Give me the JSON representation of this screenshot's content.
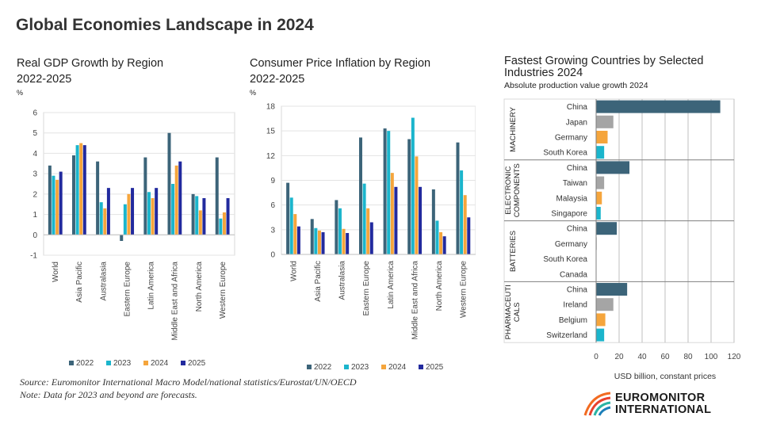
{
  "title": "Global Economies Landscape in 2024",
  "colors": {
    "2022": "#3c6479",
    "2023": "#1bb5cc",
    "2024": "#f5a53c",
    "2025": "#222a9e"
  },
  "source": {
    "line1": "Source: Euromonitor International Macro Model/national statistics/Eurostat/UN/OECD",
    "line2": "Note: Data for 2023 and beyond are forecasts."
  },
  "logo": {
    "line1": "EUROMONITOR",
    "line2": "INTERNATIONAL"
  },
  "chart_data": [
    {
      "type": "bar",
      "title": "Real GDP Growth by Region",
      "subtitle": "2022-2025",
      "ylabel": "%",
      "ylim": [
        -1,
        6
      ],
      "yticks": [
        -1,
        0,
        1,
        2,
        3,
        4,
        5,
        6
      ],
      "categories": [
        "World",
        "Asia Pacific",
        "Australasia",
        "Eastern Europe",
        "Latin America",
        "Middle East and Africa",
        "North America",
        "Western Europe"
      ],
      "series": [
        {
          "name": "2022",
          "values": [
            3.4,
            3.9,
            3.6,
            -0.3,
            3.8,
            5.0,
            2.0,
            3.8
          ]
        },
        {
          "name": "2023",
          "values": [
            2.9,
            4.4,
            1.6,
            1.5,
            2.1,
            2.5,
            1.9,
            0.8
          ]
        },
        {
          "name": "2024",
          "values": [
            2.7,
            4.5,
            1.3,
            2.0,
            1.8,
            3.4,
            1.2,
            1.1
          ]
        },
        {
          "name": "2025",
          "values": [
            3.1,
            4.4,
            2.3,
            2.3,
            2.3,
            3.6,
            1.8,
            1.8
          ]
        }
      ],
      "legend": "bottom"
    },
    {
      "type": "bar",
      "title": "Consumer Price Inflation by Region",
      "subtitle": "2022-2025",
      "ylabel": "%",
      "ylim": [
        0,
        18
      ],
      "yticks": [
        0,
        3,
        6,
        9,
        12,
        15,
        18
      ],
      "categories": [
        "World",
        "Asia Pacific",
        "Australasia",
        "Eastern Europe",
        "Latin America",
        "Middle East and Africa",
        "North America",
        "Western Europe"
      ],
      "series": [
        {
          "name": "2022",
          "values": [
            8.7,
            4.3,
            6.6,
            14.2,
            15.3,
            14.0,
            7.9,
            13.6
          ]
        },
        {
          "name": "2023",
          "values": [
            6.9,
            3.2,
            5.6,
            8.6,
            15.0,
            16.6,
            4.1,
            10.2
          ]
        },
        {
          "name": "2024",
          "values": [
            4.9,
            2.9,
            3.1,
            5.6,
            9.9,
            11.9,
            2.7,
            7.2
          ]
        },
        {
          "name": "2025",
          "values": [
            3.4,
            2.7,
            2.6,
            3.9,
            8.2,
            8.2,
            2.2,
            4.5
          ]
        }
      ],
      "legend": "bottom"
    },
    {
      "type": "bar",
      "orientation": "horizontal",
      "title": "Fastest Growing Countries by Selected Industries 2024",
      "subtitle": "Absolute production value growth 2024",
      "xlabel": "USD billion, constant prices",
      "xlim": [
        0,
        120
      ],
      "xticks": [
        0,
        20,
        40,
        60,
        80,
        100,
        120
      ],
      "groups": [
        {
          "name_lines": [
            "MACHINERY"
          ],
          "items": [
            {
              "label": "China",
              "value": 108,
              "rank": 0
            },
            {
              "label": "Japan",
              "value": 15,
              "rank": 1
            },
            {
              "label": "Germany",
              "value": 10,
              "rank": 2
            },
            {
              "label": "South Korea",
              "value": 7,
              "rank": 3
            }
          ]
        },
        {
          "name_lines": [
            "ELECTRONIC",
            "COMPONENTS"
          ],
          "items": [
            {
              "label": "China",
              "value": 29,
              "rank": 0
            },
            {
              "label": "Taiwan",
              "value": 7,
              "rank": 1
            },
            {
              "label": "Malaysia",
              "value": 5,
              "rank": 2
            },
            {
              "label": "Singapore",
              "value": 4,
              "rank": 3
            }
          ]
        },
        {
          "name_lines": [
            "BATTERIES"
          ],
          "items": [
            {
              "label": "China",
              "value": 18,
              "rank": 0
            },
            {
              "label": "Germany",
              "value": 0.5,
              "rank": 1
            },
            {
              "label": "South Korea",
              "value": 0.3,
              "rank": 2
            },
            {
              "label": "Canada",
              "value": 0.2,
              "rank": 3
            }
          ]
        },
        {
          "name_lines": [
            "PHARMACEUTI",
            "CALS"
          ],
          "items": [
            {
              "label": "China",
              "value": 27,
              "rank": 0
            },
            {
              "label": "Ireland",
              "value": 15,
              "rank": 1
            },
            {
              "label": "Belgium",
              "value": 8,
              "rank": 2
            },
            {
              "label": "Switzerland",
              "value": 7,
              "rank": 3
            }
          ]
        }
      ]
    }
  ]
}
